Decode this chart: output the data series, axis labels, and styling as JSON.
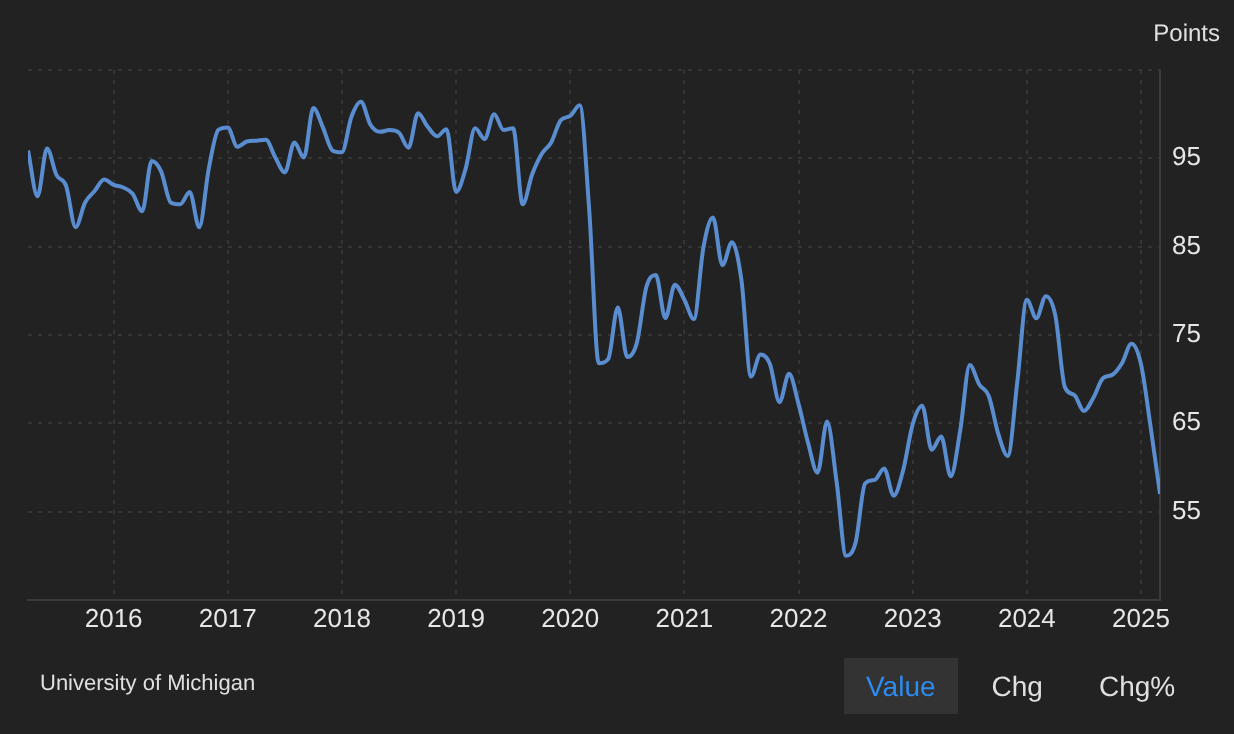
{
  "chart_data": {
    "type": "line",
    "ylabel": "Points",
    "x": [
      "2015-04",
      "2015-05",
      "2015-06",
      "2015-07",
      "2015-08",
      "2015-09",
      "2015-10",
      "2015-11",
      "2015-12",
      "2016-01",
      "2016-02",
      "2016-03",
      "2016-04",
      "2016-05",
      "2016-06",
      "2016-07",
      "2016-08",
      "2016-09",
      "2016-10",
      "2016-11",
      "2016-12",
      "2017-01",
      "2017-02",
      "2017-03",
      "2017-04",
      "2017-05",
      "2017-06",
      "2017-07",
      "2017-08",
      "2017-09",
      "2017-10",
      "2017-11",
      "2017-12",
      "2018-01",
      "2018-02",
      "2018-03",
      "2018-04",
      "2018-05",
      "2018-06",
      "2018-07",
      "2018-08",
      "2018-09",
      "2018-10",
      "2018-11",
      "2018-12",
      "2019-01",
      "2019-02",
      "2019-03",
      "2019-04",
      "2019-05",
      "2019-06",
      "2019-07",
      "2019-08",
      "2019-09",
      "2019-10",
      "2019-11",
      "2019-12",
      "2020-01",
      "2020-02",
      "2020-03",
      "2020-04",
      "2020-05",
      "2020-06",
      "2020-07",
      "2020-08",
      "2020-09",
      "2020-10",
      "2020-11",
      "2020-12",
      "2021-01",
      "2021-02",
      "2021-03",
      "2021-04",
      "2021-05",
      "2021-06",
      "2021-07",
      "2021-08",
      "2021-09",
      "2021-10",
      "2021-11",
      "2021-12",
      "2022-01",
      "2022-02",
      "2022-03",
      "2022-04",
      "2022-05",
      "2022-06",
      "2022-07",
      "2022-08",
      "2022-09",
      "2022-10",
      "2022-11",
      "2022-12",
      "2023-01",
      "2023-02",
      "2023-03",
      "2023-04",
      "2023-05",
      "2023-06",
      "2023-07",
      "2023-08",
      "2023-09",
      "2023-10",
      "2023-11",
      "2023-12",
      "2024-01",
      "2024-02",
      "2024-03",
      "2024-04",
      "2024-05",
      "2024-06",
      "2024-07",
      "2024-08",
      "2024-09",
      "2024-10",
      "2024-11",
      "2024-12",
      "2025-01",
      "2025-02",
      "2025-03"
    ],
    "series": [
      {
        "color": "#5a8dcf",
        "values": [
          95.9,
          90.7,
          96.1,
          93.1,
          91.9,
          87.2,
          90.0,
          91.3,
          92.6,
          92.0,
          91.7,
          91.0,
          89.0,
          94.7,
          93.5,
          90.0,
          89.8,
          91.2,
          87.2,
          93.8,
          98.2,
          98.5,
          96.3,
          96.9,
          97.0,
          97.1,
          95.1,
          93.4,
          96.8,
          95.1,
          100.7,
          98.5,
          95.9,
          95.7,
          99.7,
          101.4,
          98.8,
          98.0,
          98.2,
          97.9,
          96.2,
          100.1,
          98.6,
          97.5,
          98.3,
          91.2,
          93.8,
          98.4,
          97.2,
          100.0,
          98.2,
          98.4,
          89.8,
          93.2,
          95.5,
          96.8,
          99.3,
          99.8,
          101.0,
          89.1,
          71.8,
          72.3,
          78.1,
          72.5,
          74.1,
          80.4,
          81.8,
          76.9,
          80.7,
          79.0,
          76.8,
          84.9,
          88.3,
          82.9,
          85.5,
          81.2,
          70.3,
          72.8,
          71.7,
          67.4,
          70.6,
          67.2,
          62.8,
          59.4,
          65.2,
          58.4,
          50.0,
          51.5,
          58.2,
          58.6,
          59.9,
          56.8,
          59.7,
          64.9,
          67.0,
          62.0,
          63.5,
          59.0,
          64.2,
          71.6,
          69.4,
          68.1,
          63.8,
          61.3,
          69.7,
          79.0,
          76.9,
          79.4,
          77.2,
          69.1,
          68.2,
          66.4,
          67.9,
          70.1,
          70.5,
          71.8,
          74.0,
          71.7,
          64.7,
          57.0
        ]
      }
    ],
    "xlim": [
      "2015-04",
      "2025-03"
    ],
    "xticks": [
      "2016",
      "2017",
      "2018",
      "2019",
      "2020",
      "2021",
      "2022",
      "2023",
      "2024",
      "2025"
    ],
    "ylim": [
      45,
      105
    ],
    "yticks": [
      {
        "value": 105,
        "label": null
      },
      95,
      85,
      75,
      65,
      55
    ],
    "grid": true,
    "legend": false,
    "marker": "none",
    "line_style": "solid",
    "annotations": [
      "University of Michigan",
      "Value",
      "Chg",
      "Chg%"
    ]
  }
}
